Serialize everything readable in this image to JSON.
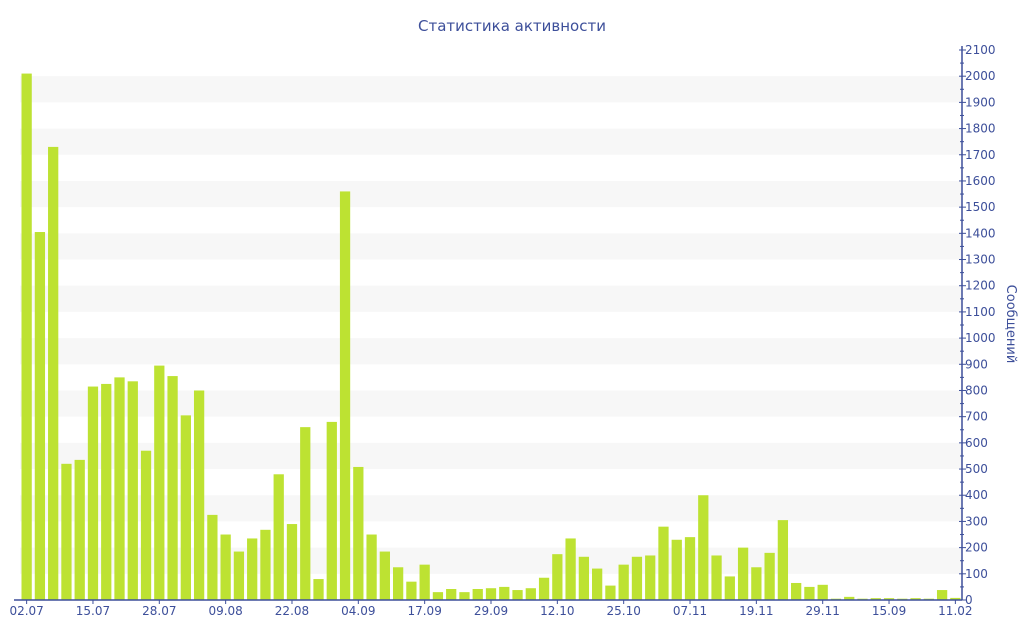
{
  "chart_data": {
    "type": "bar",
    "title": "Статистика активности",
    "xlabel": "",
    "ylabel": "Сообщений",
    "ylim": [
      0,
      2100
    ],
    "y_ticks": [
      0,
      100,
      200,
      300,
      400,
      500,
      600,
      700,
      800,
      900,
      1000,
      1100,
      1200,
      1300,
      1400,
      1500,
      1600,
      1700,
      1800,
      1900,
      2000,
      2100
    ],
    "y_axis_side": "right",
    "grid": "alternating horizontal bands",
    "legend": "none",
    "bar_color": "#bde232",
    "text_color": "#3d4f9a",
    "band_color": "#f7f7f7",
    "x_tick_labels": [
      {
        "index": 0,
        "label": "02.07"
      },
      {
        "index": 5,
        "label": "15.07"
      },
      {
        "index": 10,
        "label": "28.07"
      },
      {
        "index": 15,
        "label": "09.08"
      },
      {
        "index": 20,
        "label": "22.08"
      },
      {
        "index": 25,
        "label": "04.09"
      },
      {
        "index": 30,
        "label": "17.09"
      },
      {
        "index": 35,
        "label": "29.09"
      },
      {
        "index": 40,
        "label": "12.10"
      },
      {
        "index": 45,
        "label": "25.10"
      },
      {
        "index": 50,
        "label": "07.11"
      },
      {
        "index": 55,
        "label": "19.11"
      },
      {
        "index": 60,
        "label": "29.11"
      },
      {
        "index": 65,
        "label": "15.09"
      },
      {
        "index": 70,
        "label": "11.02"
      }
    ],
    "values": [
      2010,
      1405,
      1730,
      520,
      535,
      815,
      825,
      850,
      835,
      570,
      895,
      855,
      705,
      800,
      325,
      250,
      185,
      235,
      268,
      480,
      290,
      660,
      80,
      680,
      1560,
      508,
      250,
      185,
      125,
      70,
      135,
      30,
      42,
      30,
      42,
      45,
      50,
      38,
      45,
      85,
      175,
      235,
      165,
      120,
      55,
      135,
      165,
      170,
      280,
      230,
      240,
      400,
      170,
      90,
      200,
      125,
      180,
      305,
      65,
      50,
      58,
      5,
      12,
      5,
      7,
      7,
      5,
      7,
      5,
      38,
      8
    ]
  }
}
